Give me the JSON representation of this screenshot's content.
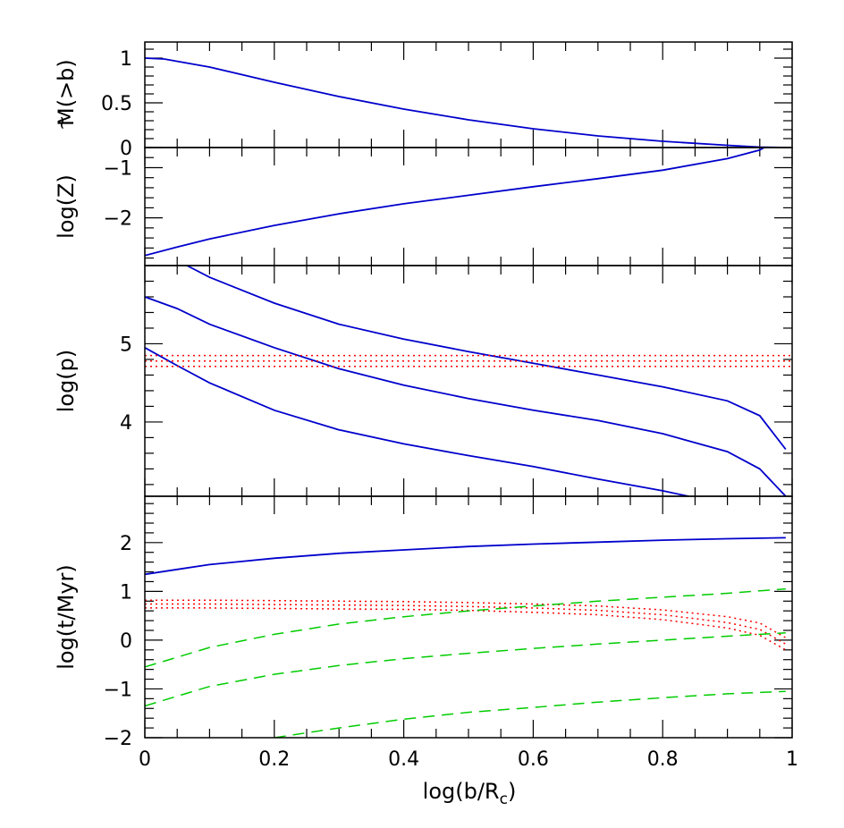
{
  "chart_data": {
    "type": "line",
    "x": {
      "label_main": "log(b/R",
      "label_sub": "c",
      "label_close": ")",
      "lim": [
        0,
        1
      ],
      "ticks": [
        0,
        0.2,
        0.4,
        0.6,
        0.8,
        1
      ],
      "tick_labels": [
        "0",
        "0.2",
        "0.4",
        "0.6",
        "0.8",
        "1"
      ]
    },
    "colors": {
      "blue": "#0000cc",
      "red": "#ff0000",
      "green": "#00cc00"
    },
    "panels": [
      {
        "id": "mass",
        "ylabel": "M(>b)",
        "ylabel_tilde": "~",
        "ylim": [
          0,
          1.18
        ],
        "yticks": [
          0,
          0.5,
          1
        ],
        "ytick_labels": [
          "0",
          "0.5",
          "1"
        ],
        "series": [
          {
            "style": "solid",
            "color": "blue",
            "x": [
              0,
              0.03,
              0.1,
              0.2,
              0.3,
              0.4,
              0.5,
              0.6,
              0.7,
              0.8,
              0.9,
              0.95,
              0.99
            ],
            "y": [
              1.0,
              0.99,
              0.9,
              0.73,
              0.57,
              0.43,
              0.31,
              0.21,
              0.13,
              0.07,
              0.025,
              0.005,
              0.0
            ]
          }
        ]
      },
      {
        "id": "metallicity",
        "ylabel": "log(Z)",
        "ylim": [
          -2.95,
          -0.6
        ],
        "yticks": [
          -2,
          -1
        ],
        "ytick_labels": [
          "−2",
          "−1"
        ],
        "series": [
          {
            "style": "solid",
            "color": "blue",
            "x": [
              0,
              0.05,
              0.1,
              0.2,
              0.3,
              0.4,
              0.5,
              0.6,
              0.7,
              0.8,
              0.9,
              0.95,
              0.99
            ],
            "y": [
              -2.75,
              -2.58,
              -2.42,
              -2.15,
              -1.92,
              -1.72,
              -1.55,
              -1.38,
              -1.22,
              -1.05,
              -0.82,
              -0.65,
              -0.35
            ]
          }
        ]
      },
      {
        "id": "pressure",
        "ylabel": "log(p)",
        "ylim": [
          3.05,
          6.0
        ],
        "yticks": [
          4,
          5
        ],
        "ytick_labels": [
          "4",
          "5"
        ],
        "series": [
          {
            "style": "solid",
            "color": "blue",
            "x": [
              0.065,
              0.1,
              0.2,
              0.3,
              0.4,
              0.5,
              0.6,
              0.7,
              0.8,
              0.9,
              0.95,
              0.99
            ],
            "y": [
              6.0,
              5.85,
              5.52,
              5.25,
              5.06,
              4.9,
              4.75,
              4.6,
              4.45,
              4.27,
              4.08,
              3.65
            ]
          },
          {
            "style": "solid",
            "color": "blue",
            "x": [
              0,
              0.05,
              0.1,
              0.2,
              0.3,
              0.4,
              0.5,
              0.6,
              0.7,
              0.8,
              0.9,
              0.95,
              0.99
            ],
            "y": [
              5.6,
              5.45,
              5.25,
              4.95,
              4.68,
              4.47,
              4.3,
              4.15,
              4.02,
              3.85,
              3.62,
              3.4,
              3.05
            ]
          },
          {
            "style": "solid",
            "color": "blue",
            "x": [
              0,
              0.05,
              0.1,
              0.2,
              0.3,
              0.4,
              0.5,
              0.6,
              0.7,
              0.8,
              0.84
            ],
            "y": [
              4.95,
              4.72,
              4.5,
              4.15,
              3.9,
              3.72,
              3.57,
              3.43,
              3.27,
              3.12,
              3.05
            ]
          },
          {
            "style": "dotted",
            "color": "red",
            "x": [
              0,
              1
            ],
            "y": [
              4.85,
              4.85
            ]
          },
          {
            "style": "dotted",
            "color": "red",
            "x": [
              0,
              1
            ],
            "y": [
              4.78,
              4.78
            ]
          },
          {
            "style": "dotted",
            "color": "red",
            "x": [
              0,
              1
            ],
            "y": [
              4.71,
              4.71
            ]
          }
        ]
      },
      {
        "id": "time",
        "ylabel": "log(t/Myr)",
        "ylim": [
          -2.0,
          2.95
        ],
        "yticks": [
          -2,
          -1,
          0,
          1,
          2
        ],
        "ytick_labels": [
          "−2",
          "−1",
          "0",
          "1",
          "2"
        ],
        "series": [
          {
            "style": "solid",
            "color": "blue",
            "x": [
              0,
              0.05,
              0.1,
              0.2,
              0.3,
              0.4,
              0.5,
              0.6,
              0.7,
              0.8,
              0.9,
              0.99
            ],
            "y": [
              1.35,
              1.45,
              1.55,
              1.68,
              1.78,
              1.85,
              1.92,
              1.97,
              2.01,
              2.05,
              2.08,
              2.1
            ]
          },
          {
            "style": "dotted",
            "color": "red",
            "x": [
              0,
              0.1,
              0.2,
              0.3,
              0.4,
              0.5,
              0.6,
              0.7,
              0.8,
              0.9,
              0.95,
              0.99
            ],
            "y": [
              0.82,
              0.82,
              0.81,
              0.8,
              0.79,
              0.77,
              0.74,
              0.7,
              0.62,
              0.48,
              0.35,
              0.05
            ]
          },
          {
            "style": "dotted",
            "color": "red",
            "x": [
              0,
              0.1,
              0.2,
              0.3,
              0.4,
              0.5,
              0.6,
              0.7,
              0.8,
              0.9,
              0.95,
              0.99
            ],
            "y": [
              0.74,
              0.74,
              0.73,
              0.72,
              0.71,
              0.69,
              0.66,
              0.61,
              0.52,
              0.36,
              0.22,
              -0.08
            ]
          },
          {
            "style": "dotted",
            "color": "red",
            "x": [
              0,
              0.1,
              0.2,
              0.3,
              0.4,
              0.5,
              0.6,
              0.7,
              0.8,
              0.9,
              0.95,
              0.99
            ],
            "y": [
              0.66,
              0.66,
              0.65,
              0.64,
              0.63,
              0.61,
              0.57,
              0.52,
              0.42,
              0.25,
              0.1,
              -0.2
            ]
          },
          {
            "style": "dashed",
            "color": "green",
            "x": [
              0,
              0.1,
              0.2,
              0.3,
              0.4,
              0.5,
              0.6,
              0.7,
              0.8,
              0.9,
              0.99
            ],
            "y": [
              -0.55,
              -0.15,
              0.12,
              0.33,
              0.48,
              0.6,
              0.7,
              0.8,
              0.88,
              0.96,
              1.05
            ]
          },
          {
            "style": "dashed",
            "color": "green",
            "x": [
              0,
              0.1,
              0.2,
              0.3,
              0.4,
              0.5,
              0.6,
              0.7,
              0.8,
              0.9,
              0.99
            ],
            "y": [
              -1.35,
              -0.95,
              -0.7,
              -0.52,
              -0.38,
              -0.27,
              -0.17,
              -0.08,
              0.0,
              0.08,
              0.15
            ]
          },
          {
            "style": "dashed",
            "color": "green",
            "x": [
              0.2,
              0.3,
              0.4,
              0.5,
              0.6,
              0.7,
              0.8,
              0.9,
              0.99
            ],
            "y": [
              -2.0,
              -1.8,
              -1.62,
              -1.48,
              -1.38,
              -1.27,
              -1.18,
              -1.1,
              -1.05
            ]
          }
        ]
      }
    ]
  }
}
